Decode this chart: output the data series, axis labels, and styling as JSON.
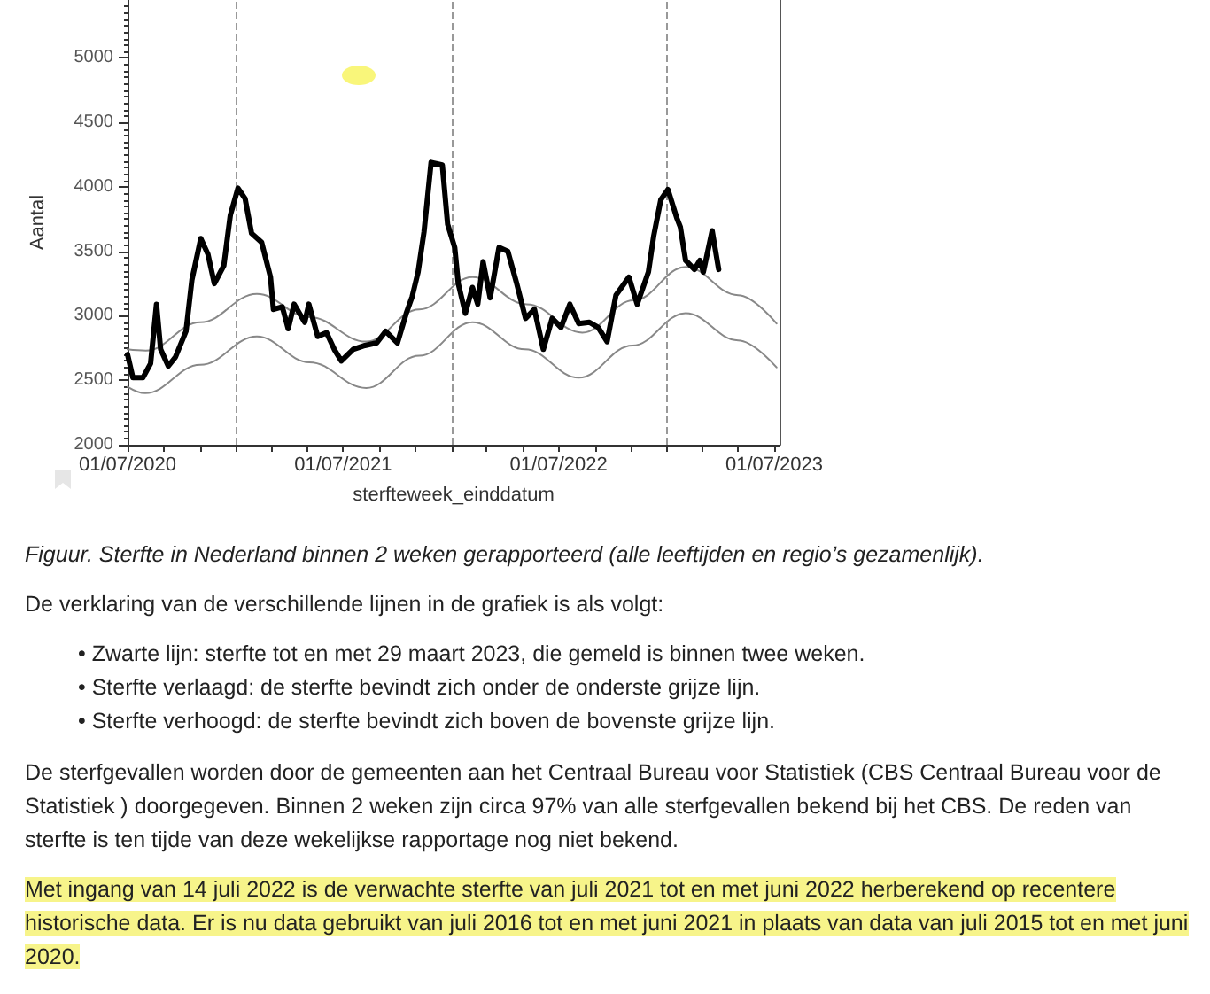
{
  "chart_data": {
    "type": "line",
    "ylabel": "Aantal",
    "xlabel": "sterfteweek_einddatum",
    "xlim": [
      "2020-07-01",
      "2023-07-10"
    ],
    "xticks": [
      {
        "value": "2020-07-01",
        "label": "01/07/2020"
      },
      {
        "value": "2020-09-01",
        "label": null
      },
      {
        "value": "2020-11-01",
        "label": null
      },
      {
        "value": "2021-01-01",
        "label": null
      },
      {
        "value": "2021-03-01",
        "label": null
      },
      {
        "value": "2021-05-01",
        "label": null
      },
      {
        "value": "2021-07-01",
        "label": "01/07/2021"
      },
      {
        "value": "2021-09-01",
        "label": null
      },
      {
        "value": "2021-11-01",
        "label": null
      },
      {
        "value": "2022-01-01",
        "label": null
      },
      {
        "value": "2022-03-01",
        "label": null
      },
      {
        "value": "2022-05-01",
        "label": null
      },
      {
        "value": "2022-07-01",
        "label": "01/07/2022"
      },
      {
        "value": "2022-09-01",
        "label": null
      },
      {
        "value": "2022-11-01",
        "label": null
      },
      {
        "value": "2023-01-01",
        "label": null
      },
      {
        "value": "2023-03-01",
        "label": null
      },
      {
        "value": "2023-05-01",
        "label": null
      },
      {
        "value": "2023-07-01",
        "label": "01/07/2023"
      }
    ],
    "ylim": [
      2000,
      5450
    ],
    "yticks": [
      2000,
      2500,
      3000,
      3500,
      4000,
      4500,
      5000
    ],
    "grid": false,
    "marker": "none",
    "ref_lines": [
      {
        "axis": "x",
        "value": "2021-01-01",
        "color": "#999999",
        "line_style": "dashed"
      },
      {
        "axis": "x",
        "value": "2022-01-01",
        "color": "#999999",
        "line_style": "dashed"
      },
      {
        "axis": "x",
        "value": "2023-01-01",
        "color": "#999999",
        "line_style": "dashed"
      }
    ],
    "series": [
      {
        "color": "#888888",
        "x": [
          "2020-07-01",
          "2020-08-01",
          "2020-11-01",
          "2021-02-05",
          "2021-05-05",
          "2021-08-09",
          "2021-11-07",
          "2022-02-05",
          "2022-05-08",
          "2022-08-10",
          "2022-11-05",
          "2023-02-01",
          "2023-05-01",
          "2023-07-05"
        ],
        "values": [
          2740,
          2730,
          2950,
          3170,
          2990,
          2800,
          3050,
          3300,
          3090,
          2870,
          3120,
          3380,
          3160,
          2940
        ]
      },
      {
        "color": "#888888",
        "x": [
          "2020-07-01",
          "2020-07-31",
          "2020-11-01",
          "2021-02-05",
          "2021-05-05",
          "2021-08-09",
          "2021-11-07",
          "2022-02-05",
          "2022-05-05",
          "2022-08-04",
          "2022-11-03",
          "2023-02-01",
          "2023-05-01",
          "2023-07-05"
        ],
        "values": [
          2450,
          2400,
          2620,
          2840,
          2640,
          2440,
          2690,
          2950,
          2740,
          2520,
          2770,
          3020,
          2810,
          2600
        ]
      },
      {
        "color": "#000000",
        "x": [
          "2020-07-01",
          "2020-07-10",
          "2020-07-27",
          "2020-08-09",
          "2020-08-19",
          "2020-08-26",
          "2020-09-08",
          "2020-09-20",
          "2020-10-08",
          "2020-10-18",
          "2020-11-02",
          "2020-11-14",
          "2020-11-25",
          "2020-12-11",
          "2020-12-22",
          "2021-01-04",
          "2021-01-16",
          "2021-01-27",
          "2021-02-13",
          "2021-02-28",
          "2021-03-05",
          "2021-03-20",
          "2021-03-30",
          "2021-04-09",
          "2021-04-27",
          "2021-05-04",
          "2021-05-19",
          "2021-06-03",
          "2021-06-16",
          "2021-06-28",
          "2021-07-18",
          "2021-08-07",
          "2021-08-27",
          "2021-09-11",
          "2021-10-01",
          "2021-10-16",
          "2021-10-26",
          "2021-11-05",
          "2021-11-15",
          "2021-11-27",
          "2021-12-16",
          "2021-12-25",
          "2022-01-06",
          "2022-01-12",
          "2022-01-24",
          "2022-02-05",
          "2022-02-14",
          "2022-02-23",
          "2022-03-07",
          "2022-03-22",
          "2022-04-06",
          "2022-04-21",
          "2022-05-06",
          "2022-05-21",
          "2022-06-05",
          "2022-06-20",
          "2022-07-05",
          "2022-07-20",
          "2022-08-04",
          "2022-08-22",
          "2022-09-06",
          "2022-09-21",
          "2022-10-06",
          "2022-10-28",
          "2022-11-11",
          "2022-11-30",
          "2022-12-09",
          "2022-12-21",
          "2023-01-02",
          "2023-01-17",
          "2023-01-23",
          "2023-02-01",
          "2023-02-16",
          "2023-02-25",
          "2023-03-03",
          "2023-03-18",
          "2023-03-29"
        ],
        "values": [
          2700,
          2520,
          2520,
          2630,
          3090,
          2740,
          2610,
          2680,
          2880,
          3280,
          3600,
          3480,
          3250,
          3390,
          3780,
          3990,
          3910,
          3640,
          3570,
          3300,
          3050,
          3070,
          2900,
          3090,
          2950,
          3090,
          2840,
          2870,
          2740,
          2650,
          2740,
          2770,
          2790,
          2880,
          2790,
          3020,
          3150,
          3340,
          3650,
          4190,
          4170,
          3710,
          3530,
          3250,
          3020,
          3220,
          3090,
          3420,
          3140,
          3530,
          3500,
          3250,
          2980,
          3050,
          2740,
          2980,
          2910,
          3090,
          2940,
          2950,
          2910,
          2800,
          3160,
          3300,
          3090,
          3340,
          3620,
          3900,
          3980,
          3760,
          3690,
          3430,
          3360,
          3430,
          3340,
          3660,
          3360
        ]
      }
    ],
    "annotations": [
      "Figuur. Sterfte in Nederland binnen 2 weken gerapporteerd (alle leeftijden en regio’s gezamenlijk).",
      "De verklaring van de verschillende lijnen in de grafiek is als volgt:",
      "• Zwarte lijn: sterfte tot en met 29 maart 2023, die gemeld is binnen twee weken.",
      "• Sterfte verlaagd: de sterfte bevindt zich onder de onderste grijze lijn.",
      "• Sterfte verhoogd: de sterfte bevindt zich boven de bovenste grijze lijn.",
      "De sterfgevallen worden door de gemeenten aan het Centraal Bureau voor Statistiek (CBS Centraal Bureau voor de Statistiek ) doorgegeven. Binnen 2 weken zijn circa 97% van alle sterfgevallen bekend bij het CBS. De reden van sterfte is ten tijde van deze wekelijkse rapportage nog niet bekend.",
      "Met ingang van 14 juli 2022 is de verwachte sterfte van juli 2021 tot en met juni 2022 herberekend op recentere historische data. Er is nu data gebruikt van juli 2016 tot en met juni 2021 in plaats van data van juli 2015 tot en met juni 2020."
    ]
  }
}
